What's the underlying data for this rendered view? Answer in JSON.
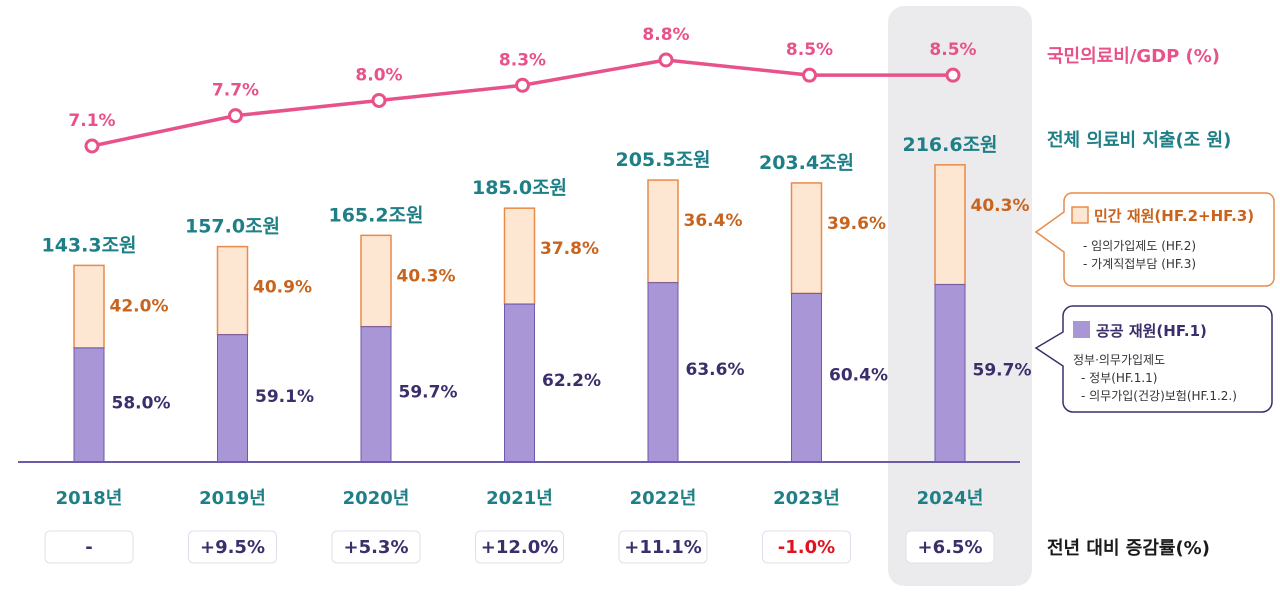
{
  "chart_data": {
    "type": "bar",
    "stacked": true,
    "categories": [
      "2018년",
      "2019년",
      "2020년",
      "2021년",
      "2022년",
      "2023년",
      "2024년"
    ],
    "totals": [
      143.3,
      157.0,
      165.2,
      185.0,
      205.5,
      203.4,
      216.6
    ],
    "total_labels": [
      "143.3조원",
      "157.0조원",
      "165.2조원",
      "185.0조원",
      "205.5조원",
      "203.4조원",
      "216.6조원"
    ],
    "series": [
      {
        "name": "공공 재원(HF.1)",
        "share_pct": [
          58.0,
          59.1,
          59.7,
          62.2,
          63.6,
          60.4,
          59.7
        ],
        "labels": [
          "58.0%",
          "59.1%",
          "59.7%",
          "62.2%",
          "63.6%",
          "60.4%",
          "59.7%"
        ],
        "color": "#a896d6"
      },
      {
        "name": "민간 재원(HF.2+HF.3)",
        "share_pct": [
          42.0,
          40.9,
          40.3,
          37.8,
          36.4,
          39.6,
          40.3
        ],
        "labels": [
          "42.0%",
          "40.9%",
          "40.3%",
          "37.8%",
          "36.4%",
          "39.6%",
          "40.3%"
        ],
        "color": "#fde6d2"
      }
    ],
    "line": {
      "name": "국민의료비/GDP (%)",
      "values": [
        7.1,
        7.7,
        8.0,
        8.3,
        8.8,
        8.5,
        8.5
      ],
      "labels": [
        "7.1%",
        "7.7%",
        "8.0%",
        "8.3%",
        "8.8%",
        "8.5%",
        "8.5%"
      ],
      "color": "#e8528a"
    },
    "yoy": {
      "name": "전년 대비 증감률(%)",
      "values": [
        null,
        9.5,
        5.3,
        12.0,
        11.1,
        -1.0,
        6.5
      ],
      "labels": [
        "-",
        "+9.5%",
        "+5.3%",
        "+12.0%",
        "+11.1%",
        "-1.0%",
        "+6.5%"
      ]
    },
    "total_series_name": "전체 의료비 지출(조 원)",
    "highlight_category": "2024년",
    "legend": {
      "private": {
        "title": "민간 재원(HF.2+HF.3)",
        "lines": [
          "- 임의가입제도 (HF.2)",
          "- 가계직접부담 (HF.3)"
        ]
      },
      "public": {
        "title": "공공 재원(HF.1)",
        "lines": [
          "정부·의무가입제도",
          "- 정부(HF.1.1)",
          "- 의무가입(건강)보험(HF.1.2.)"
        ]
      }
    },
    "colors": {
      "teal": "#1e7f86",
      "orange": "#c8641e",
      "navy": "#3c2e6b",
      "pink": "#e8528a",
      "bar_public": "#a896d6",
      "bar_private": "#fde6d2",
      "private_border": "#e88a4a",
      "public_border": "#6e5aa8",
      "negative": "#e0141e",
      "highlight_bg": "#ebebed"
    }
  }
}
